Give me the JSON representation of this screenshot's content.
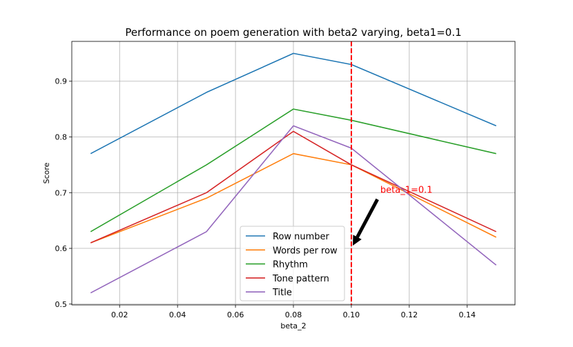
{
  "chart_data": {
    "type": "line",
    "title": "Performance on poem generation with beta2 varying, beta1=0.1",
    "xlabel": "beta_2",
    "ylabel": "Score",
    "xlim": [
      0.0035,
      0.1565
    ],
    "ylim": [
      0.4985,
      0.9715
    ],
    "xticks": [
      "0.02",
      "0.04",
      "0.06",
      "0.08",
      "0.10",
      "0.12",
      "0.14"
    ],
    "xtick_values": [
      0.02,
      0.04,
      0.06,
      0.08,
      0.1,
      0.12,
      0.14
    ],
    "yticks": [
      "0.5",
      "0.6",
      "0.7",
      "0.8",
      "0.9"
    ],
    "ytick_values": [
      0.5,
      0.6,
      0.7,
      0.8,
      0.9
    ],
    "grid": true,
    "legend_position": "bottom-center",
    "x": [
      0.01,
      0.05,
      0.08,
      0.1,
      0.15
    ],
    "series": [
      {
        "name": "Row number",
        "color": "#1f77b4",
        "values": [
          0.77,
          0.88,
          0.95,
          0.93,
          0.82
        ]
      },
      {
        "name": "Words per row",
        "color": "#ff7f0e",
        "values": [
          0.61,
          0.69,
          0.77,
          0.75,
          0.62
        ]
      },
      {
        "name": "Rhythm",
        "color": "#2ca02c",
        "values": [
          0.63,
          0.75,
          0.85,
          0.83,
          0.77
        ]
      },
      {
        "name": "Tone pattern",
        "color": "#d62728",
        "values": [
          0.61,
          0.7,
          0.81,
          0.75,
          0.63
        ]
      },
      {
        "name": "Title",
        "color": "#9467bd",
        "values": [
          0.52,
          0.63,
          0.82,
          0.78,
          0.57
        ]
      }
    ],
    "vline": {
      "x": 0.1,
      "color": "#ff0000",
      "style": "dashed"
    },
    "annotation": {
      "text": "beta_1=0.1",
      "color": "#ff0000",
      "text_at": [
        0.11,
        0.7
      ],
      "arrow_from": [
        0.109,
        0.688
      ],
      "arrow_to": [
        0.1005,
        0.605
      ]
    }
  }
}
